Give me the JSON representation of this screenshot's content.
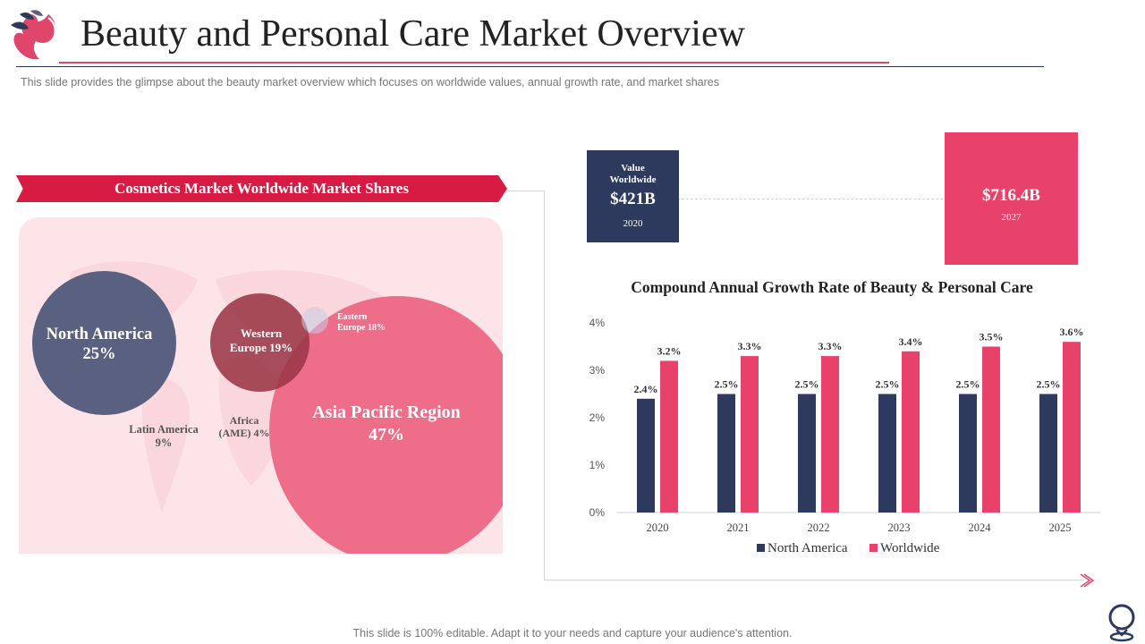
{
  "slide": {
    "title": "Beauty and Personal Care Market Overview",
    "subtitle": "This slide provides  the glimpse about the beauty market overview  which focuses on worldwide  values,  annual  growth rate,  and market shares",
    "footer": "This slide is 100% editable. Adapt it to your needs and capture your audience's attention."
  },
  "market_shares": {
    "title": "Cosmetics Market Worldwide Market Shares",
    "regions": [
      {
        "name": "North America",
        "share": "25%"
      },
      {
        "name_line1": "Western",
        "name_line2": "Europe 19%"
      },
      {
        "name_line1": "Eastern",
        "name_line2": "Europe 18%"
      },
      {
        "name": "Asia Pacific Region",
        "share": "47%"
      },
      {
        "name": "Latin America",
        "share": "9%"
      },
      {
        "name_line1": "Africa",
        "name_line2": "(AME)  4%"
      }
    ]
  },
  "value_worldwide": {
    "label_line1": "Value",
    "label_line2": "Worldwide",
    "value_2020": "$421B",
    "year_2020": "2020",
    "value_2027": "$716.4B",
    "year_2027": "2027"
  },
  "colors": {
    "navy": "#2d3a5e",
    "red": "#e8416a",
    "ribbon_red": "#d81b43",
    "panel_pink": "#fde4e8"
  },
  "chart_data": [
    {
      "type": "pie",
      "title": "Cosmetics Market Worldwide Market Shares",
      "categories": [
        "North America",
        "Western Europe",
        "Eastern Europe",
        "Asia Pacific Region",
        "Latin America",
        "Africa (AME)"
      ],
      "values": [
        25,
        19,
        18,
        47,
        9,
        4
      ],
      "unit": "%"
    },
    {
      "type": "bar",
      "title": "Compound Annual Growth Rate of Beauty & Personal Care",
      "categories": [
        "2020",
        "2021",
        "2022",
        "2023",
        "2024",
        "2025"
      ],
      "series": [
        {
          "name": "North America",
          "color": "#2d3a5e",
          "values": [
            2.4,
            2.5,
            2.5,
            2.5,
            2.5,
            2.5
          ]
        },
        {
          "name": "Worldwide",
          "color": "#e8416a",
          "values": [
            3.2,
            3.3,
            3.3,
            3.4,
            3.5,
            3.6
          ]
        }
      ],
      "value_labels": [
        [
          "2.4%",
          "2.5%",
          "2.5%",
          "2.5%",
          "2.5%",
          "2.5%"
        ],
        [
          "3.2%",
          "3.3%",
          "3.3%",
          "3.4%",
          "3.5%",
          "3.6%"
        ]
      ],
      "yticks": [
        "0%",
        "1%",
        "2%",
        "3%",
        "4%"
      ],
      "ylim": [
        0,
        4
      ],
      "legend": "bottom"
    }
  ]
}
